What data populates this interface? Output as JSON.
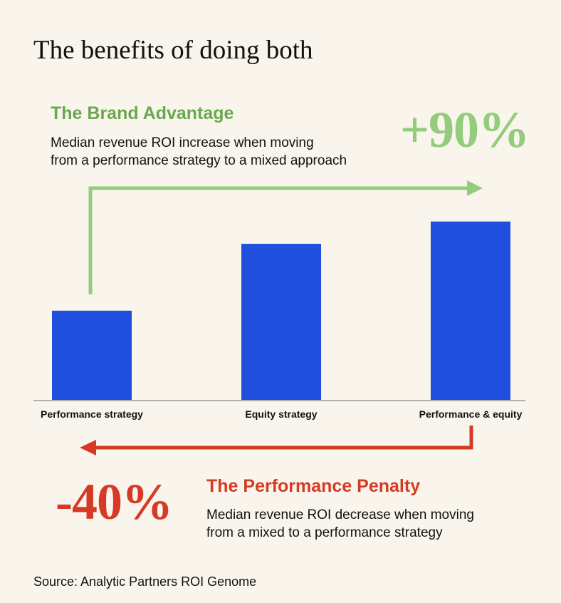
{
  "title": "The benefits of doing both",
  "brand": {
    "heading": "The Brand Advantage",
    "desc_line1": "Median revenue ROI increase when moving",
    "desc_line2": "from a performance strategy to a mixed approach",
    "value": "+90%",
    "color": "#6aa84f",
    "arrow_color": "#93cd7b"
  },
  "penalty": {
    "heading": "The Performance Penalty",
    "desc_line1": "Median revenue ROI decrease when moving",
    "desc_line2": "from a mixed to a performance strategy",
    "value": "-40%",
    "color": "#d63a24"
  },
  "source": "Source: Analytic Partners ROI Genome",
  "chart_data": {
    "type": "bar",
    "categories": [
      "Performance strategy",
      "Equity strategy",
      "Performance & equity"
    ],
    "values": [
      1.0,
      1.75,
      2.0
    ],
    "ylim": [
      0,
      2.15
    ],
    "grid": false,
    "bar_color": "#1f4fdc"
  }
}
